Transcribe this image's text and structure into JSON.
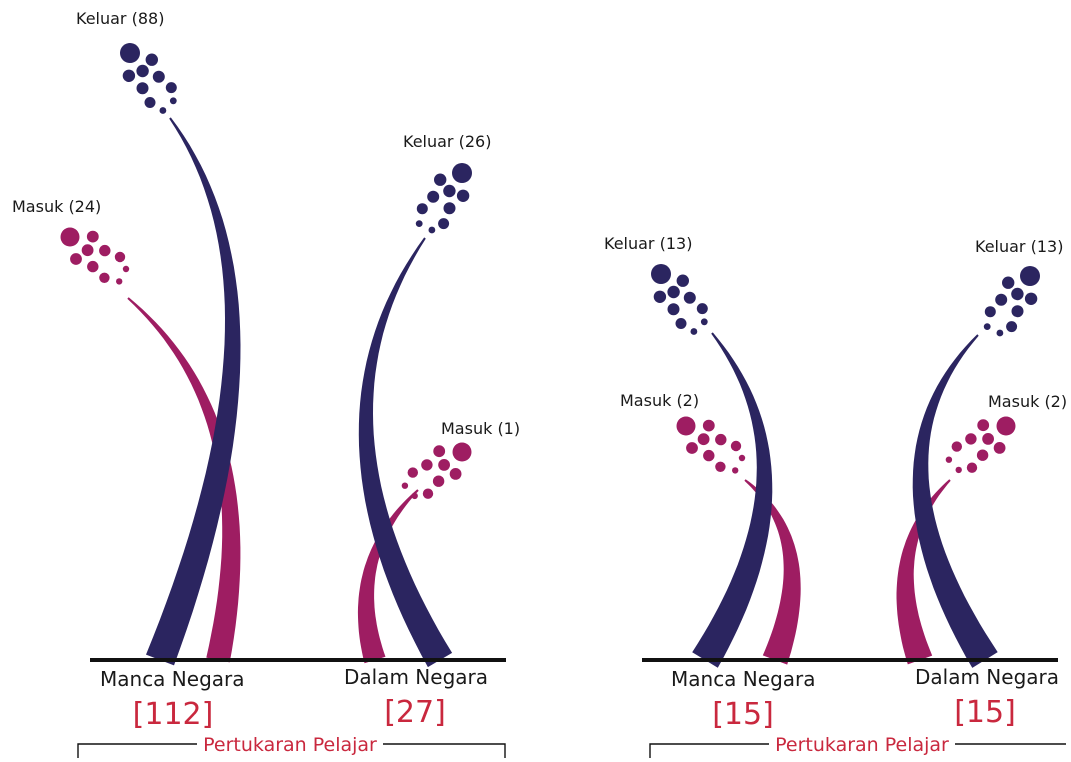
{
  "colors": {
    "keluar": "#2b2560",
    "masuk": "#9e1d62",
    "accent": "#c9283e",
    "ink": "#111111"
  },
  "panels": [
    {
      "groups": [
        {
          "name": "Manca Negara",
          "total": "[112]",
          "keluar": "Keluar (88)",
          "masuk": "Masuk (24)"
        },
        {
          "name": "Dalam Negara",
          "total": "[27]",
          "keluar": "Keluar (26)",
          "masuk": "Masuk (1)"
        }
      ],
      "footer": "Pertukaran Pelajar"
    },
    {
      "groups": [
        {
          "name": "Manca Negara",
          "total": "[15]",
          "keluar": "Keluar (13)",
          "masuk": "Masuk (2)"
        },
        {
          "name": "Dalam Negara",
          "total": "[15]",
          "keluar": "Keluar (13)",
          "masuk": "Masuk (2)"
        }
      ],
      "footer": "Pertukaran Pelajar"
    }
  ]
}
